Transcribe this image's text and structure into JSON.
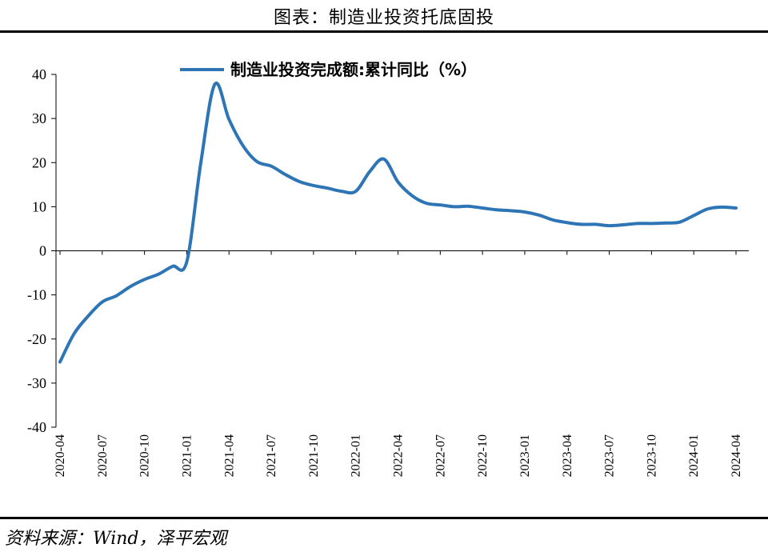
{
  "figure": {
    "title": "图表：制造业投资托底固投",
    "source": "资料来源：Wind，泽平宏观"
  },
  "chart_data": {
    "type": "line",
    "title": "",
    "xlabel": "",
    "ylabel": "",
    "ylim": [
      -40,
      40
    ],
    "yticks": [
      40,
      30,
      20,
      10,
      0,
      -10,
      -20,
      -30,
      -40
    ],
    "xlim": [
      "2020-04",
      "2024-05"
    ],
    "xticks": [
      "2020-04",
      "2020-07",
      "2020-10",
      "2021-01",
      "2021-04",
      "2021-07",
      "2021-10",
      "2022-01",
      "2022-04",
      "2022-07",
      "2022-10",
      "2023-01",
      "2023-04",
      "2023-07",
      "2023-10",
      "2024-01",
      "2024-04"
    ],
    "grid": false,
    "legend": "top",
    "line_color": "#2e75b6",
    "series": [
      {
        "name": "制造业投资完成额:累计同比（%）",
        "points": [
          [
            "2020-04",
            -25.2
          ],
          [
            "2020-05",
            -18.8
          ],
          [
            "2020-06",
            -14.8
          ],
          [
            "2020-07",
            -11.6
          ],
          [
            "2020-08",
            -10.2
          ],
          [
            "2020-09",
            -8.1
          ],
          [
            "2020-10",
            -6.5
          ],
          [
            "2020-11",
            -5.3
          ],
          [
            "2020-12",
            -3.5
          ],
          [
            "2021-01",
            -2.5
          ],
          [
            "2021-02",
            20.0
          ],
          [
            "2021-03",
            37.8
          ],
          [
            "2021-04",
            29.8
          ],
          [
            "2021-05",
            23.8
          ],
          [
            "2021-06",
            20.2
          ],
          [
            "2021-07",
            19.2
          ],
          [
            "2021-08",
            17.3
          ],
          [
            "2021-09",
            15.7
          ],
          [
            "2021-10",
            14.8
          ],
          [
            "2021-11",
            14.2
          ],
          [
            "2021-12",
            13.5
          ],
          [
            "2022-01",
            13.5
          ],
          [
            "2022-02",
            18.0
          ],
          [
            "2022-03",
            20.8
          ],
          [
            "2022-04",
            15.6
          ],
          [
            "2022-05",
            12.5
          ],
          [
            "2022-06",
            10.8
          ],
          [
            "2022-07",
            10.4
          ],
          [
            "2022-08",
            10.0
          ],
          [
            "2022-09",
            10.1
          ],
          [
            "2022-10",
            9.7
          ],
          [
            "2022-11",
            9.3
          ],
          [
            "2022-12",
            9.1
          ],
          [
            "2023-01",
            8.8
          ],
          [
            "2023-02",
            8.1
          ],
          [
            "2023-03",
            7.0
          ],
          [
            "2023-04",
            6.4
          ],
          [
            "2023-05",
            6.0
          ],
          [
            "2023-06",
            6.0
          ],
          [
            "2023-07",
            5.7
          ],
          [
            "2023-08",
            5.9
          ],
          [
            "2023-09",
            6.2
          ],
          [
            "2023-10",
            6.2
          ],
          [
            "2023-11",
            6.3
          ],
          [
            "2023-12",
            6.5
          ],
          [
            "2024-01",
            8.0
          ],
          [
            "2024-02",
            9.5
          ],
          [
            "2024-03",
            9.9
          ],
          [
            "2024-04",
            9.7
          ]
        ]
      }
    ]
  }
}
